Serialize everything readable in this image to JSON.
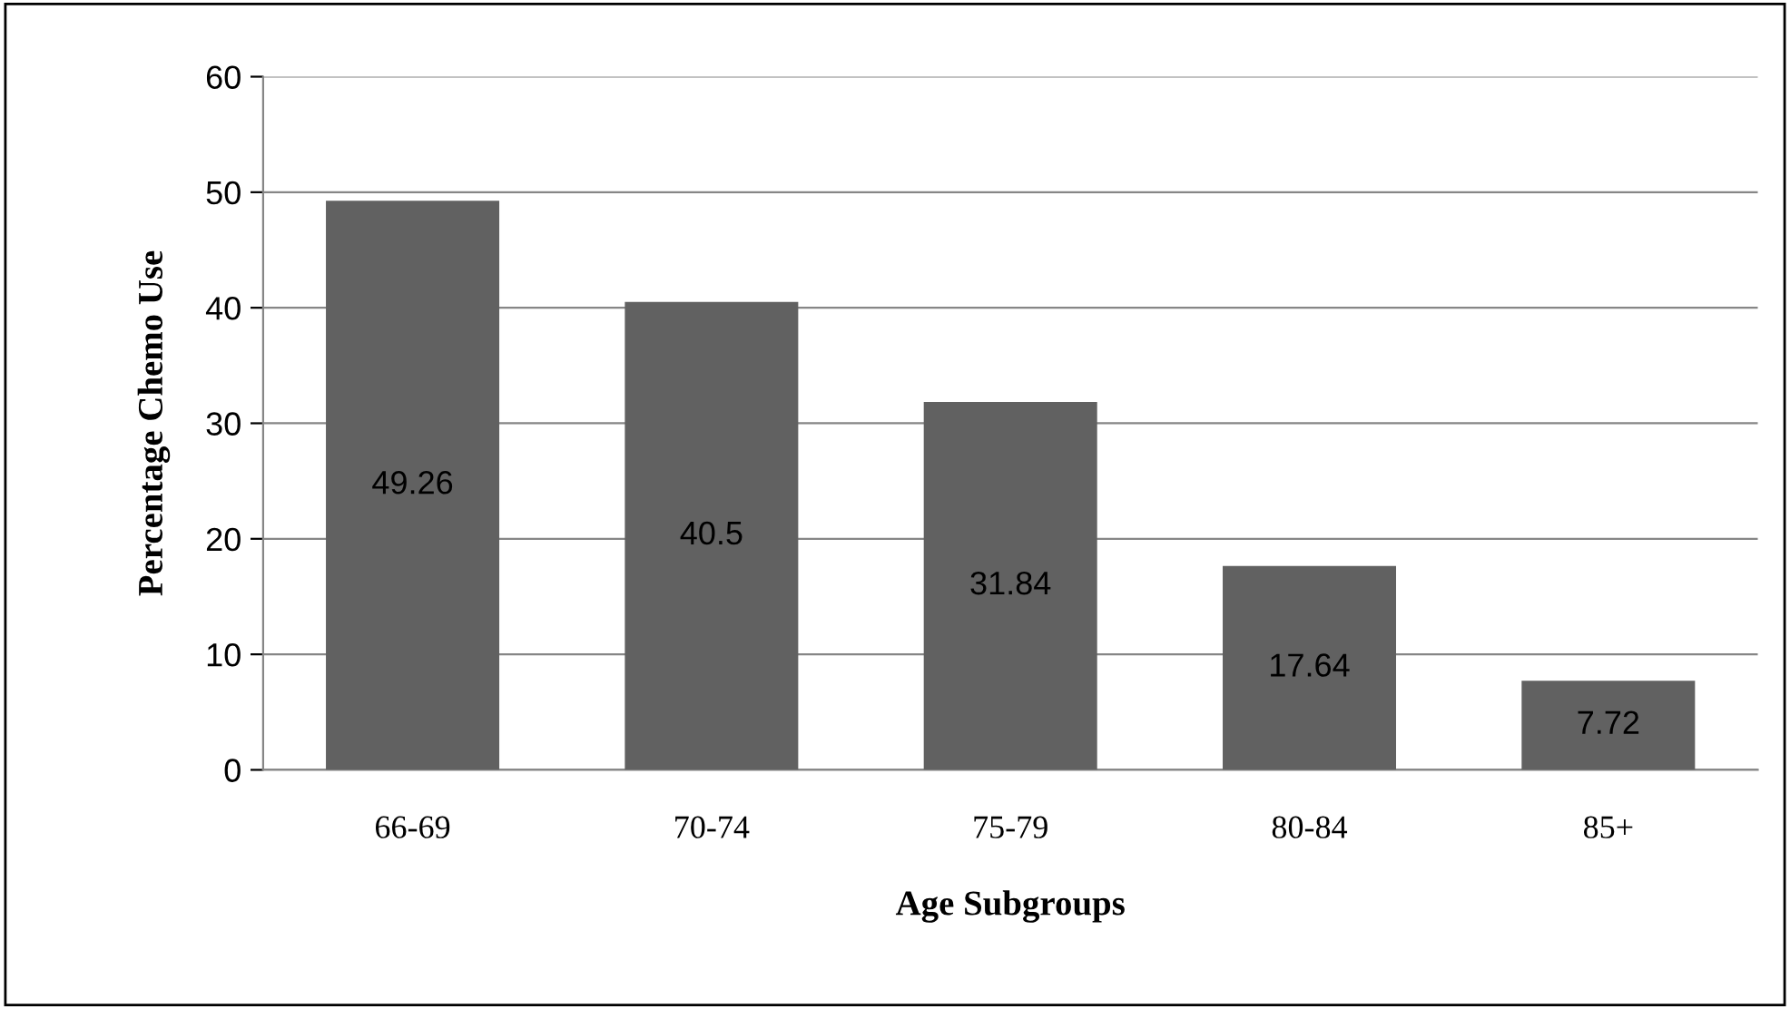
{
  "chart_data": {
    "type": "bar",
    "xlabel": "Age Subgroups",
    "ylabel": "Percentage Chemo Use",
    "categories": [
      "66-69",
      "70-74",
      "75-79",
      "80-84",
      "85+"
    ],
    "values": [
      49.26,
      40.5,
      31.84,
      17.64,
      7.72
    ],
    "color": "#616161",
    "ylim": [
      0,
      60
    ],
    "yticks": [
      0,
      10,
      20,
      30,
      40,
      50,
      60
    ],
    "grid": "y",
    "data_labels": true
  }
}
